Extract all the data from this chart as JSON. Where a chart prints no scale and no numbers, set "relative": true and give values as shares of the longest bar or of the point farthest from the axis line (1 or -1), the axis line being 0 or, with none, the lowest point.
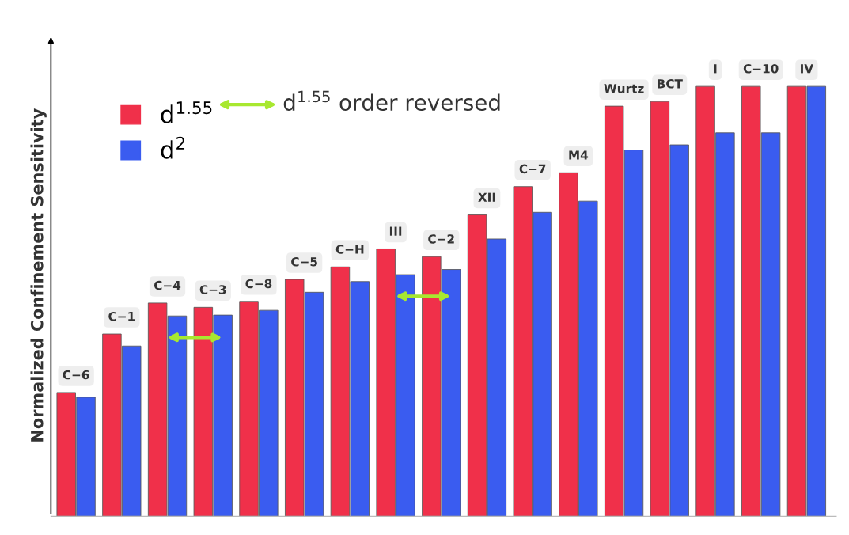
{
  "chart_data": {
    "type": "bar",
    "relative": true,
    "ylabel": "Normalized Confinement Sensitivity",
    "categories": [
      "C−6",
      "C−1",
      "C−4",
      "C−3",
      "C−8",
      "C−5",
      "C−H",
      "III",
      "C−2",
      "XII",
      "C−7",
      "M4",
      "Wurtz",
      "BCT",
      "I",
      "C−10",
      "IV"
    ],
    "series": [
      {
        "name": "d$^{1.55}$",
        "color": "#f0304a",
        "values": [
          0.288,
          0.424,
          0.496,
          0.486,
          0.5,
          0.551,
          0.58,
          0.622,
          0.604,
          0.701,
          0.767,
          0.799,
          0.954,
          0.965,
          1.0,
          1.0,
          1.0
        ]
      },
      {
        "name": "d$^{2}$",
        "color": "#3a5cf0",
        "values": [
          0.277,
          0.396,
          0.466,
          0.468,
          0.479,
          0.521,
          0.546,
          0.562,
          0.574,
          0.645,
          0.707,
          0.733,
          0.852,
          0.864,
          0.892,
          0.892,
          1.0
        ]
      }
    ],
    "annotations": [
      "d$^{1.55}$ order reversed"
    ],
    "legend": "top left"
  }
}
